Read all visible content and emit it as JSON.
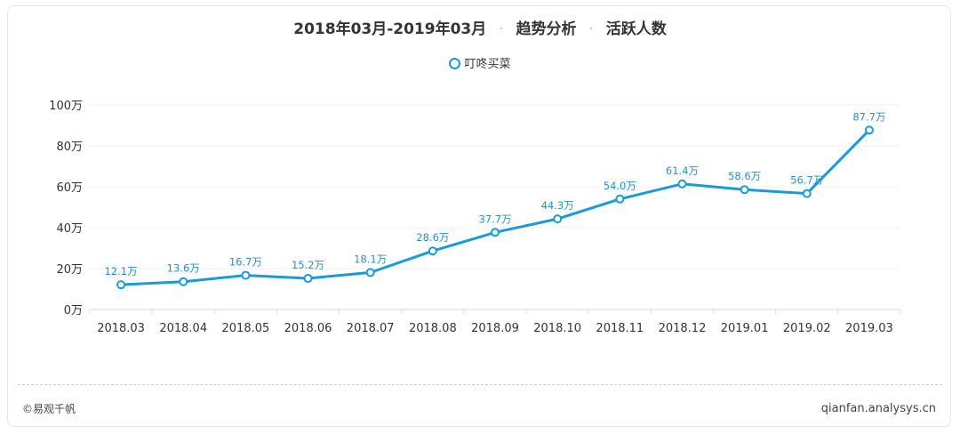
{
  "header": {
    "period": "2018年03月-2019年03月",
    "sep": "·",
    "analysis": "趋势分析",
    "metric": "活跃人数"
  },
  "footer": {
    "left": "©易观千帆",
    "right": "qianfan.analysys.cn"
  },
  "colors": {
    "series": "#1a9ad6",
    "label": "#2a8fc7"
  },
  "chart_data": {
    "type": "line",
    "title": "2018年03月-2019年03月 · 趋势分析 · 活跃人数",
    "xlabel": "",
    "ylabel": "",
    "unit": "万",
    "ylim": [
      0,
      100
    ],
    "yticks": [
      "0万",
      "20万",
      "40万",
      "60万",
      "80万",
      "100万"
    ],
    "categories": [
      "2018.03",
      "2018.04",
      "2018.05",
      "2018.06",
      "2018.07",
      "2018.08",
      "2018.09",
      "2018.10",
      "2018.11",
      "2018.12",
      "2019.01",
      "2019.02",
      "2019.03"
    ],
    "series": [
      {
        "name": "叮咚买菜",
        "values": [
          12.1,
          13.6,
          16.7,
          15.2,
          18.1,
          28.6,
          37.7,
          44.3,
          54.0,
          61.4,
          58.6,
          56.7,
          87.7
        ],
        "labels": [
          "12.1万",
          "13.6万",
          "16.7万",
          "15.2万",
          "18.1万",
          "28.6万",
          "37.7万",
          "44.3万",
          "54.0万",
          "61.4万",
          "58.6万",
          "56.7万",
          "87.7万"
        ]
      }
    ],
    "legend_position": "top-center",
    "grid": true
  }
}
